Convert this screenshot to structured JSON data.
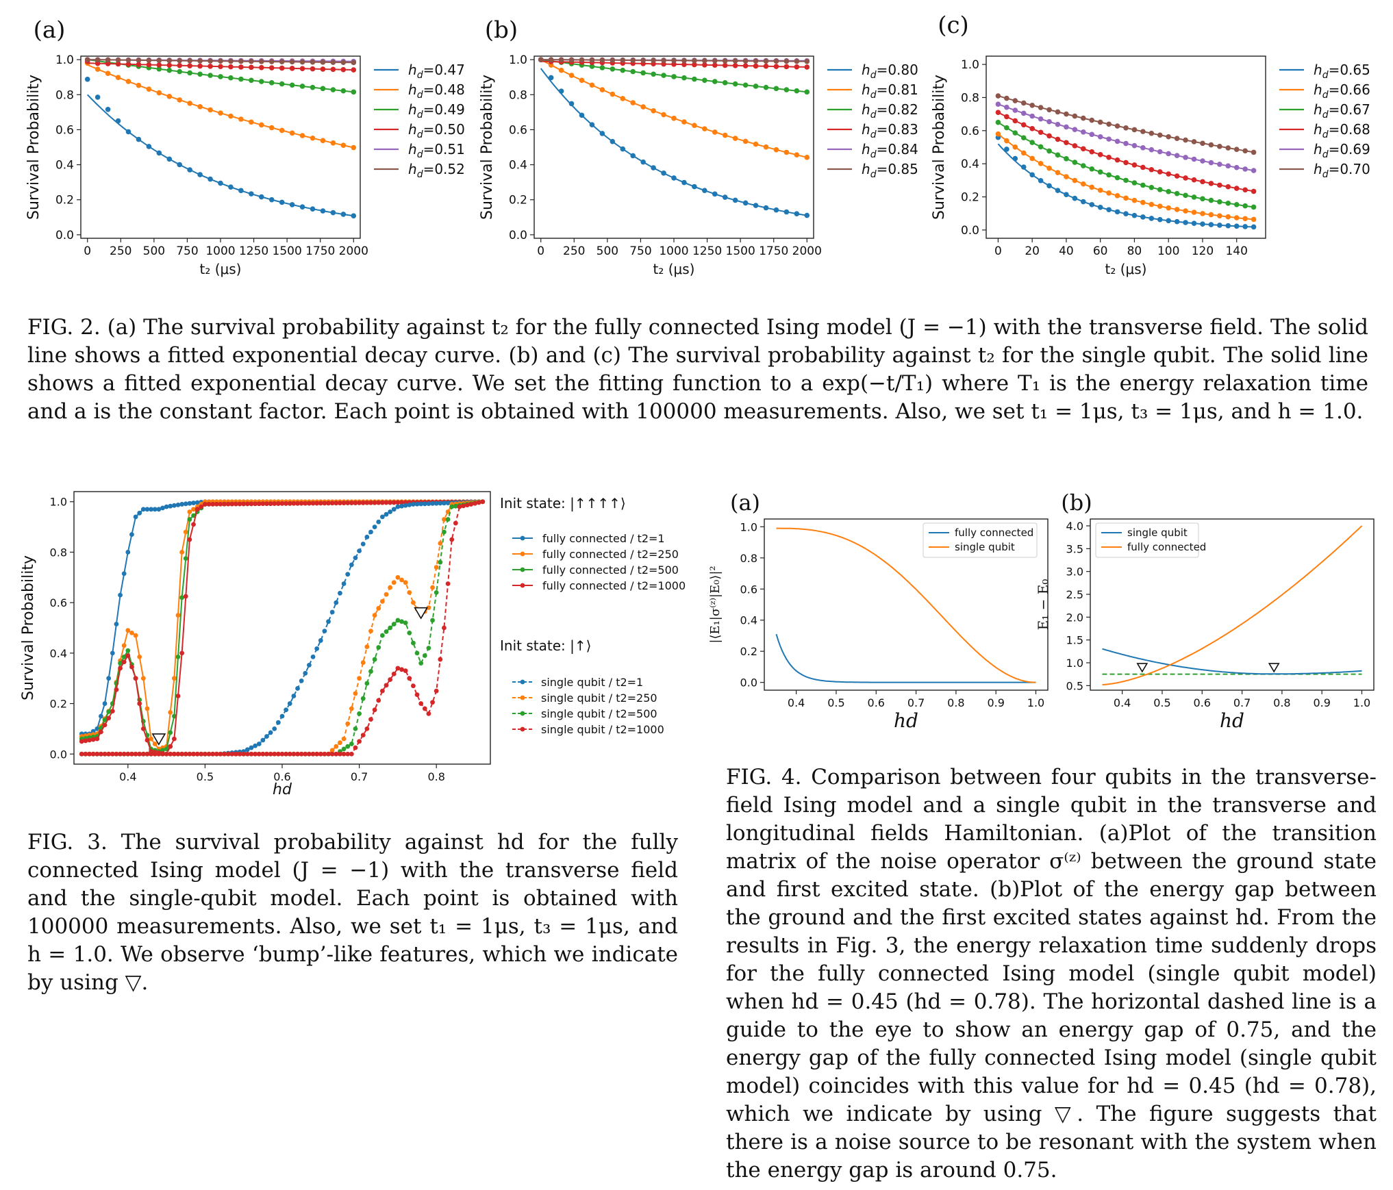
{
  "colors": [
    "#1f77b4",
    "#ff7f0e",
    "#2ca02c",
    "#d62728",
    "#9467bd",
    "#8c564b"
  ],
  "fig2": {
    "caption": "FIG. 2. (a) The survival probability against t₂ for the fully connected Ising model (J = −1) with the transverse field. The solid line shows a fitted exponential decay curve. (b) and (c) The survival probability against t₂ for the single qubit. The solid line shows a fitted exponential decay curve. We set the fitting function to a exp(−t/T₁) where T₁ is the energy relaxation time and a is the constant factor. Each point is obtained with 100000 measurements. Also, we set t₁ = 1μs, t₃ = 1μs, and h = 1.0.",
    "panels": [
      {
        "label": "(a)",
        "ylabel": "Survival Probability",
        "xlabel": "t₂ (μs)",
        "xlim": [
          0,
          2000
        ],
        "ylim": [
          0,
          1
        ],
        "xticks": [
          "0",
          "250",
          "500",
          "750",
          "1000",
          "1250",
          "1500",
          "1750",
          "2000"
        ],
        "yticks": [
          "0.0",
          "0.2",
          "0.4",
          "0.6",
          "0.8",
          "1.0"
        ],
        "legend": [
          "hd=0.47",
          "hd=0.48",
          "hd=0.49",
          "hd=0.50",
          "hd=0.51",
          "hd=0.52"
        ],
        "series": [
          {
            "name": "hd=0.47",
            "a": 0.8,
            "tau": 1000
          },
          {
            "name": "hd=0.48",
            "a": 0.97,
            "tau": 3000
          },
          {
            "name": "hd=0.49",
            "a": 1.0,
            "tau": 9800
          },
          {
            "name": "hd=0.50",
            "a": 0.98,
            "tau": 50000
          },
          {
            "name": "hd=0.51",
            "a": 1.0,
            "tau": 200000
          },
          {
            "name": "hd=0.52",
            "a": 1.0,
            "tau": 120000
          }
        ]
      },
      {
        "label": "(b)",
        "ylabel": "Survival Probability",
        "xlabel": "t₂ (μs)",
        "xlim": [
          0,
          2000
        ],
        "ylim": [
          0,
          1
        ],
        "xticks": [
          "0",
          "250",
          "500",
          "750",
          "1000",
          "1250",
          "1500",
          "1750",
          "2000"
        ],
        "yticks": [
          "0.0",
          "0.2",
          "0.4",
          "0.6",
          "0.8",
          "1.0"
        ],
        "legend": [
          "hd=0.80",
          "hd=0.81",
          "hd=0.82",
          "hd=0.83",
          "hd=0.84",
          "hd=0.85"
        ],
        "series": [
          {
            "name": "hd=0.80",
            "a": 0.95,
            "tau": 930
          },
          {
            "name": "hd=0.81",
            "a": 1.0,
            "tau": 2450
          },
          {
            "name": "hd=0.82",
            "a": 1.0,
            "tau": 9800
          },
          {
            "name": "hd=0.83",
            "a": 0.99,
            "tau": 60000
          },
          {
            "name": "hd=0.84",
            "a": 1.0,
            "tau": 300000
          },
          {
            "name": "hd=0.85",
            "a": 1.0,
            "tau": 200000
          }
        ]
      },
      {
        "label": "(c)",
        "ylabel": "Survival Probability",
        "xlabel": "t₂ (μs)",
        "xlim": [
          0,
          150
        ],
        "ylim": [
          0,
          1
        ],
        "xticks": [
          "0",
          "20",
          "40",
          "60",
          "80",
          "100",
          "120",
          "140"
        ],
        "yticks": [
          "0.0",
          "0.2",
          "0.4",
          "0.6",
          "0.8",
          "1.0"
        ],
        "legend": [
          "hd=0.65",
          "hd=0.66",
          "hd=0.67",
          "hd=0.68",
          "hd=0.69",
          "hd=0.70"
        ],
        "series": [
          {
            "name": "hd=0.65",
            "a": 0.52,
            "tau": 45
          },
          {
            "name": "hd=0.66",
            "a": 0.58,
            "tau": 68
          },
          {
            "name": "hd=0.67",
            "a": 0.65,
            "tau": 97
          },
          {
            "name": "hd=0.68",
            "a": 0.71,
            "tau": 135
          },
          {
            "name": "hd=0.69",
            "a": 0.76,
            "tau": 200
          },
          {
            "name": "hd=0.70",
            "a": 0.81,
            "tau": 275
          }
        ]
      }
    ]
  },
  "fig3": {
    "caption": "FIG. 3. The survival probability against hd for the fully connected Ising model (J = −1) with the transverse field and the single-qubit model. Each point is obtained with 100000 measurements. Also, we set t₁ = 1μs, t₃ = 1μs, and h = 1.0. We observe ‘bump’-like features, which we indicate by using ▽.",
    "ylabel": "Survival Probability",
    "xlabel": "hd",
    "xlim": [
      0.33,
      0.87
    ],
    "ylim": [
      -0.04,
      1.04
    ],
    "xticks": [
      "0.4",
      "0.5",
      "0.6",
      "0.7",
      "0.8"
    ],
    "yticks": [
      "0.0",
      "0.2",
      "0.4",
      "0.6",
      "0.8",
      "1.0"
    ],
    "legend_title_1": "Init state:",
    "legend_state_1": "|↑↑↑↑⟩",
    "legend_title_2": "Init state:",
    "legend_state_2": "|↑⟩",
    "legend": [
      "fully connected / t2=1",
      "fully connected / t2=250",
      "fully connected / t2=500",
      "fully connected / t2=1000",
      "single qubit / t2=1",
      "single qubit / t2=250",
      "single qubit / t2=500",
      "single qubit / t2=1000"
    ],
    "markers": [
      {
        "x": 0.44,
        "y": 0.06
      },
      {
        "x": 0.78,
        "y": 0.56
      }
    ],
    "fully_connected": [
      {
        "name": "fully connected / t2=1",
        "points": [
          [
            0.34,
            0.08
          ],
          [
            0.35,
            0.08
          ],
          [
            0.36,
            0.1
          ],
          [
            0.37,
            0.2
          ],
          [
            0.38,
            0.4
          ],
          [
            0.39,
            0.63
          ],
          [
            0.4,
            0.8
          ],
          [
            0.41,
            0.94
          ],
          [
            0.42,
            0.97
          ],
          [
            0.44,
            0.97
          ],
          [
            0.45,
            0.98
          ],
          [
            0.47,
            0.99
          ],
          [
            0.5,
            1.0
          ],
          [
            0.86,
            1.0
          ]
        ]
      },
      {
        "name": "fully connected / t2=250",
        "points": [
          [
            0.34,
            0.07
          ],
          [
            0.36,
            0.08
          ],
          [
            0.38,
            0.2
          ],
          [
            0.39,
            0.37
          ],
          [
            0.4,
            0.49
          ],
          [
            0.41,
            0.47
          ],
          [
            0.42,
            0.3
          ],
          [
            0.43,
            0.06
          ],
          [
            0.44,
            0.02
          ],
          [
            0.45,
            0.03
          ],
          [
            0.46,
            0.3
          ],
          [
            0.47,
            0.8
          ],
          [
            0.48,
            0.96
          ],
          [
            0.5,
            1.0
          ],
          [
            0.86,
            1.0
          ]
        ]
      },
      {
        "name": "fully connected / t2=500",
        "points": [
          [
            0.34,
            0.06
          ],
          [
            0.36,
            0.07
          ],
          [
            0.38,
            0.2
          ],
          [
            0.39,
            0.36
          ],
          [
            0.4,
            0.41
          ],
          [
            0.41,
            0.3
          ],
          [
            0.42,
            0.13
          ],
          [
            0.43,
            0.02
          ],
          [
            0.44,
            0.01
          ],
          [
            0.45,
            0.02
          ],
          [
            0.46,
            0.15
          ],
          [
            0.47,
            0.62
          ],
          [
            0.48,
            0.93
          ],
          [
            0.5,
            0.99
          ],
          [
            0.86,
            1.0
          ]
        ]
      },
      {
        "name": "fully connected / t2=1000",
        "points": [
          [
            0.34,
            0.05
          ],
          [
            0.36,
            0.06
          ],
          [
            0.38,
            0.17
          ],
          [
            0.39,
            0.34
          ],
          [
            0.4,
            0.39
          ],
          [
            0.41,
            0.3
          ],
          [
            0.42,
            0.1
          ],
          [
            0.43,
            0.01
          ],
          [
            0.45,
            0.0
          ],
          [
            0.46,
            0.06
          ],
          [
            0.47,
            0.4
          ],
          [
            0.48,
            0.85
          ],
          [
            0.49,
            0.97
          ],
          [
            0.5,
            0.99
          ],
          [
            0.86,
            1.0
          ]
        ]
      }
    ],
    "single_qubit": [
      {
        "name": "single qubit / t2=1",
        "points": [
          [
            0.34,
            0.0
          ],
          [
            0.52,
            0.0
          ],
          [
            0.55,
            0.01
          ],
          [
            0.57,
            0.04
          ],
          [
            0.59,
            0.1
          ],
          [
            0.61,
            0.2
          ],
          [
            0.63,
            0.32
          ],
          [
            0.65,
            0.45
          ],
          [
            0.67,
            0.6
          ],
          [
            0.69,
            0.75
          ],
          [
            0.71,
            0.86
          ],
          [
            0.73,
            0.94
          ],
          [
            0.75,
            0.98
          ],
          [
            0.77,
            0.99
          ],
          [
            0.86,
            1.0
          ]
        ]
      },
      {
        "name": "single qubit / t2=250",
        "points": [
          [
            0.34,
            0.0
          ],
          [
            0.66,
            0.0
          ],
          [
            0.68,
            0.06
          ],
          [
            0.7,
            0.3
          ],
          [
            0.72,
            0.55
          ],
          [
            0.74,
            0.66
          ],
          [
            0.75,
            0.7
          ],
          [
            0.76,
            0.68
          ],
          [
            0.77,
            0.6
          ],
          [
            0.78,
            0.55
          ],
          [
            0.79,
            0.58
          ],
          [
            0.8,
            0.74
          ],
          [
            0.81,
            0.93
          ],
          [
            0.82,
            0.99
          ],
          [
            0.86,
            1.0
          ]
        ]
      },
      {
        "name": "single qubit / t2=500",
        "points": [
          [
            0.34,
            0.0
          ],
          [
            0.67,
            0.0
          ],
          [
            0.69,
            0.04
          ],
          [
            0.71,
            0.28
          ],
          [
            0.73,
            0.47
          ],
          [
            0.75,
            0.53
          ],
          [
            0.76,
            0.52
          ],
          [
            0.77,
            0.44
          ],
          [
            0.78,
            0.36
          ],
          [
            0.79,
            0.42
          ],
          [
            0.8,
            0.64
          ],
          [
            0.81,
            0.88
          ],
          [
            0.82,
            0.98
          ],
          [
            0.86,
            1.0
          ]
        ]
      },
      {
        "name": "single qubit / t2=1000",
        "points": [
          [
            0.34,
            0.0
          ],
          [
            0.69,
            0.0
          ],
          [
            0.71,
            0.1
          ],
          [
            0.73,
            0.25
          ],
          [
            0.75,
            0.34
          ],
          [
            0.76,
            0.33
          ],
          [
            0.77,
            0.27
          ],
          [
            0.78,
            0.2
          ],
          [
            0.79,
            0.16
          ],
          [
            0.8,
            0.25
          ],
          [
            0.81,
            0.5
          ],
          [
            0.82,
            0.85
          ],
          [
            0.83,
            0.98
          ],
          [
            0.86,
            1.0
          ]
        ]
      }
    ]
  },
  "fig4": {
    "caption": "FIG. 4. Comparison between four qubits in the transverse-field Ising model and a single qubit in the transverse and longitudinal fields Hamiltonian. (a)Plot of the transition matrix of the noise operator σ⁽ᶻ⁾ between the ground state and first excited state. (b)Plot of the energy gap between the ground and the first excited states against hd. From the results in Fig. 3, the energy relaxation time suddenly drops for the fully connected Ising model (single qubit model) when hd = 0.45 (hd = 0.78). The horizontal dashed line is a guide to the eye to show an energy gap of 0.75, and the energy gap of the fully connected Ising model (single qubit model) coincides with this value for hd = 0.45 (hd = 0.78), which we indicate by using ▽. The figure suggests that there is a noise source to be resonant with the system when the energy gap is around 0.75.",
    "panel_a": {
      "label": "(a)",
      "ylabel": "|⟨E₁|σ⁽ᶻ⁾|E₀⟩|²",
      "xlabel": "hd",
      "xlim": [
        0.32,
        1.03
      ],
      "ylim": [
        -0.05,
        1.05
      ],
      "xticks": [
        "0.4",
        "0.5",
        "0.6",
        "0.7",
        "0.8",
        "0.9",
        "1.0"
      ],
      "yticks": [
        "0.0",
        "0.2",
        "0.4",
        "0.6",
        "0.8",
        "1.0"
      ],
      "legend": [
        "fully connected",
        "single qubit"
      ]
    },
    "panel_b": {
      "label": "(b)",
      "ylabel": "E₁ − E₀",
      "xlabel": "hd",
      "xlim": [
        0.32,
        1.03
      ],
      "ylim": [
        0.4,
        4.15
      ],
      "xticks": [
        "0.4",
        "0.5",
        "0.6",
        "0.7",
        "0.8",
        "0.9",
        "1.0"
      ],
      "yticks": [
        "0.5",
        "1.0",
        "1.5",
        "2.0",
        "2.5",
        "3.0",
        "3.5",
        "4.0"
      ],
      "legend": [
        "single qubit",
        "fully connected"
      ],
      "guide": 0.75,
      "markers": [
        {
          "x": 0.45,
          "y": 0.9
        },
        {
          "x": 0.78,
          "y": 0.9
        }
      ]
    }
  }
}
